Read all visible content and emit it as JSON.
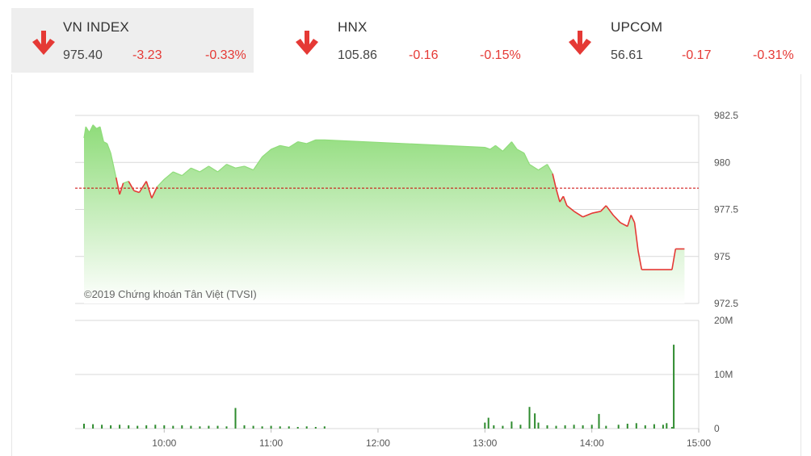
{
  "indices": [
    {
      "name": "VN INDEX",
      "value": "975.40",
      "change": "-3.23",
      "change_pct": "-0.33%",
      "direction": "down",
      "active": true
    },
    {
      "name": "HNX",
      "value": "105.86",
      "change": "-0.16",
      "change_pct": "-0.15%",
      "direction": "down",
      "active": false
    },
    {
      "name": "UPCOM",
      "value": "56.61",
      "change": "-0.17",
      "change_pct": "-0.31%",
      "direction": "down",
      "active": false
    }
  ],
  "colors": {
    "down": "#e53935",
    "area_top": "#8fdc7a",
    "area_bottom": "#ffffff",
    "reference_line": "#cc0000",
    "volume_bar": "#2e8b2e",
    "grid": "#d9d9d9"
  },
  "chart_data": [
    {
      "type": "area",
      "title": "",
      "watermark": "©2019 Chứng khoán Tân Việt (TVSI)",
      "xlabel": "",
      "ylabel": "",
      "reference_value": 978.63,
      "ylim": [
        972.5,
        982.5
      ],
      "yticks": [
        982.5,
        980,
        977.5,
        975,
        972.5
      ],
      "ytick_labels": [
        "982.5",
        "980",
        "977.5",
        "975",
        "972.5"
      ],
      "grid": true,
      "x_unit": "time of day",
      "series": [
        {
          "points": [
            [
              "9:15",
              981.3
            ],
            [
              "9:16",
              981.9
            ],
            [
              "9:18",
              981.6
            ],
            [
              "9:20",
              982.0
            ],
            [
              "9:22",
              981.8
            ],
            [
              "9:24",
              981.9
            ],
            [
              "9:26",
              981.1
            ],
            [
              "9:28",
              981.0
            ],
            [
              "9:30",
              980.5
            ],
            [
              "9:33",
              979.2
            ],
            [
              "9:35",
              978.3
            ],
            [
              "9:37",
              978.9
            ],
            [
              "9:40",
              979.0
            ],
            [
              "9:43",
              978.5
            ],
            [
              "9:46",
              978.4
            ],
            [
              "9:50",
              979.0
            ],
            [
              "9:53",
              978.1
            ],
            [
              "9:56",
              978.7
            ],
            [
              "10:00",
              979.1
            ],
            [
              "10:05",
              979.5
            ],
            [
              "10:10",
              979.3
            ],
            [
              "10:15",
              979.7
            ],
            [
              "10:20",
              979.5
            ],
            [
              "10:25",
              979.8
            ],
            [
              "10:30",
              979.5
            ],
            [
              "10:35",
              979.9
            ],
            [
              "10:40",
              979.7
            ],
            [
              "10:45",
              979.8
            ],
            [
              "10:50",
              979.6
            ],
            [
              "10:55",
              980.3
            ],
            [
              "11:00",
              980.7
            ],
            [
              "11:05",
              980.9
            ],
            [
              "11:10",
              980.8
            ],
            [
              "11:15",
              981.1
            ],
            [
              "11:20",
              981.0
            ],
            [
              "11:25",
              981.2
            ],
            [
              "11:30",
              981.2
            ],
            [
              "13:00",
              980.8
            ],
            [
              "13:03",
              980.7
            ],
            [
              "13:06",
              980.9
            ],
            [
              "13:10",
              980.6
            ],
            [
              "13:15",
              981.1
            ],
            [
              "13:18",
              980.7
            ],
            [
              "13:22",
              980.5
            ],
            [
              "13:25",
              979.9
            ],
            [
              "13:30",
              979.6
            ],
            [
              "13:35",
              979.9
            ],
            [
              "13:38",
              979.4
            ],
            [
              "13:40",
              978.6
            ],
            [
              "13:42",
              977.9
            ],
            [
              "13:44",
              978.2
            ],
            [
              "13:46",
              977.7
            ],
            [
              "13:50",
              977.4
            ],
            [
              "13:55",
              977.1
            ],
            [
              "14:00",
              977.3
            ],
            [
              "14:05",
              977.4
            ],
            [
              "14:08",
              977.7
            ],
            [
              "14:12",
              977.2
            ],
            [
              "14:16",
              976.8
            ],
            [
              "14:20",
              976.6
            ],
            [
              "14:22",
              977.2
            ],
            [
              "14:24",
              976.8
            ],
            [
              "14:26",
              975.3
            ],
            [
              "14:28",
              974.3
            ],
            [
              "14:45",
              974.3
            ],
            [
              "14:47",
              975.4
            ],
            [
              "14:52",
              975.4
            ]
          ]
        }
      ]
    },
    {
      "type": "bar",
      "title": "",
      "xlabel": "",
      "ylabel": "",
      "ylim": [
        0,
        20000000
      ],
      "yticks": [
        0,
        10000000,
        20000000
      ],
      "ytick_labels": [
        "0",
        "10M",
        "20M"
      ],
      "x_ticks": [
        "10:00",
        "11:00",
        "12:00",
        "13:00",
        "14:00",
        "15:00"
      ],
      "grid": true,
      "series": [
        {
          "points": [
            [
              "9:15",
              900000
            ],
            [
              "9:20",
              800000
            ],
            [
              "9:25",
              700000
            ],
            [
              "9:30",
              600000
            ],
            [
              "9:35",
              700000
            ],
            [
              "9:40",
              600000
            ],
            [
              "9:45",
              500000
            ],
            [
              "9:50",
              600000
            ],
            [
              "9:55",
              700000
            ],
            [
              "10:00",
              600000
            ],
            [
              "10:05",
              500000
            ],
            [
              "10:10",
              600000
            ],
            [
              "10:15",
              500000
            ],
            [
              "10:20",
              400000
            ],
            [
              "10:25",
              500000
            ],
            [
              "10:30",
              500000
            ],
            [
              "10:35",
              400000
            ],
            [
              "10:40",
              3800000
            ],
            [
              "10:45",
              600000
            ],
            [
              "10:50",
              500000
            ],
            [
              "10:55",
              400000
            ],
            [
              "11:00",
              500000
            ],
            [
              "11:05",
              400000
            ],
            [
              "11:10",
              400000
            ],
            [
              "11:15",
              300000
            ],
            [
              "11:20",
              400000
            ],
            [
              "11:25",
              300000
            ],
            [
              "11:30",
              400000
            ],
            [
              "13:00",
              1100000
            ],
            [
              "13:02",
              2000000
            ],
            [
              "13:05",
              600000
            ],
            [
              "13:10",
              500000
            ],
            [
              "13:15",
              1300000
            ],
            [
              "13:20",
              700000
            ],
            [
              "13:25",
              4000000
            ],
            [
              "13:28",
              2800000
            ],
            [
              "13:30",
              1100000
            ],
            [
              "13:35",
              600000
            ],
            [
              "13:40",
              500000
            ],
            [
              "13:45",
              600000
            ],
            [
              "13:50",
              700000
            ],
            [
              "13:55",
              600000
            ],
            [
              "14:00",
              700000
            ],
            [
              "14:04",
              2700000
            ],
            [
              "14:08",
              500000
            ],
            [
              "14:15",
              700000
            ],
            [
              "14:20",
              900000
            ],
            [
              "14:25",
              1000000
            ],
            [
              "14:30",
              600000
            ],
            [
              "14:35",
              800000
            ],
            [
              "14:40",
              700000
            ],
            [
              "14:42",
              1000000
            ],
            [
              "14:45",
              300000
            ],
            [
              "14:46",
              15500000
            ]
          ]
        }
      ]
    }
  ]
}
